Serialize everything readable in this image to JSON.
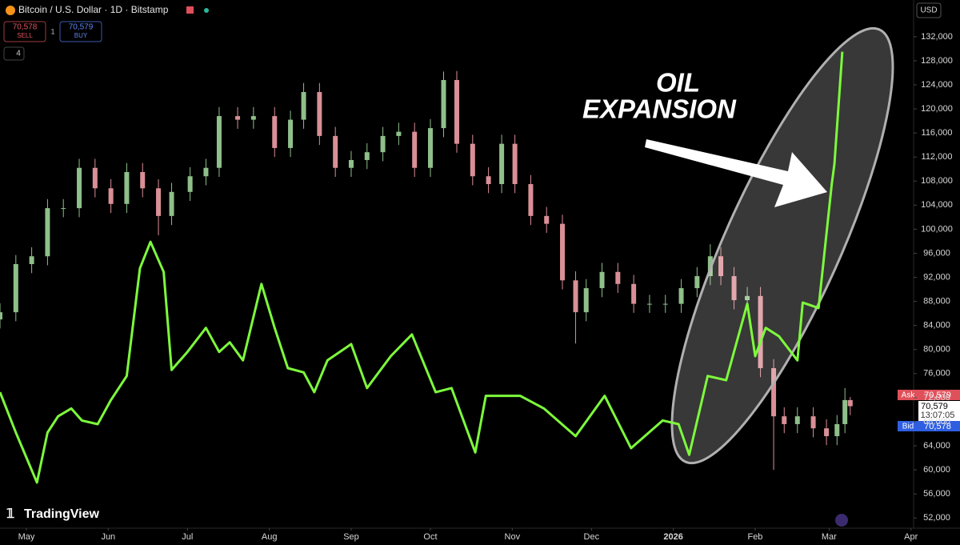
{
  "chart_data": {
    "type": "candlestick",
    "title": "Bitcoin / U.S. Dollar · 1D · Bitstamp",
    "currency": "USD",
    "order_panel": {
      "sell_price": "70,578",
      "sell_label": "SELL",
      "spread": "1",
      "buy_price": "70,579",
      "buy_label": "BUY"
    },
    "indicator_count": "4",
    "annotation": [
      "OIL",
      "EXPANSION"
    ],
    "watermark": "TradingView",
    "price_tags": {
      "ask_label": "Ask",
      "ask": "70,579",
      "last": "70,579",
      "countdown": "13:07:05",
      "bid_label": "Bid",
      "bid": "70,578"
    },
    "xlim": [
      -10,
      336
    ],
    "xticks": [
      {
        "value": 0,
        "label": "May"
      },
      {
        "value": 31,
        "label": "Jun"
      },
      {
        "value": 61,
        "label": "Jul"
      },
      {
        "value": 92,
        "label": "Aug"
      },
      {
        "value": 123,
        "label": "Sep"
      },
      {
        "value": 153,
        "label": "Oct"
      },
      {
        "value": 184,
        "label": "Nov"
      },
      {
        "value": 214,
        "label": "Dec"
      },
      {
        "value": 245,
        "label": "2026"
      },
      {
        "value": 276,
        "label": "Feb"
      },
      {
        "value": 304,
        "label": "Mar"
      },
      {
        "value": 335,
        "label": "Apr"
      }
    ],
    "ylim": [
      50300,
      138100
    ],
    "yticks": [
      {
        "value": 52000,
        "label": "52,000"
      },
      {
        "value": 56000,
        "label": "56,000"
      },
      {
        "value": 60000,
        "label": "60,000"
      },
      {
        "value": 64000,
        "label": "64,000"
      },
      {
        "value": 68000,
        "label": "68,000"
      },
      {
        "value": 72000,
        "label": "72,000"
      },
      {
        "value": 76000,
        "label": "76,000"
      },
      {
        "value": 80000,
        "label": "80,000"
      },
      {
        "value": 84000,
        "label": "84,000"
      },
      {
        "value": 88000,
        "label": "88,000"
      },
      {
        "value": 92000,
        "label": "92,000"
      },
      {
        "value": 96000,
        "label": "96,000"
      },
      {
        "value": 100000,
        "label": "100,000"
      },
      {
        "value": 104000,
        "label": "104,000"
      },
      {
        "value": 108000,
        "label": "108,000"
      },
      {
        "value": 112000,
        "label": "112,000"
      },
      {
        "value": 116000,
        "label": "116,000"
      },
      {
        "value": 120000,
        "label": "120,000"
      },
      {
        "value": 124000,
        "label": "124,000"
      },
      {
        "value": 128000,
        "label": "128,000"
      },
      {
        "value": 132000,
        "label": "132,000"
      }
    ],
    "candles": {
      "up_color": "#8fbf8a",
      "down_color": "#d98f96",
      "x": [
        -10,
        -4,
        2,
        8,
        14,
        20,
        26,
        32,
        38,
        44,
        50,
        55,
        62,
        68,
        73,
        80,
        86,
        94,
        100,
        105,
        111,
        117,
        123,
        129,
        135,
        141,
        147,
        153,
        158,
        163,
        169,
        175,
        180,
        185,
        191,
        197,
        203,
        208,
        212,
        218,
        224,
        230,
        236,
        242,
        248,
        254,
        259,
        263,
        268,
        273,
        278,
        283,
        287,
        292,
        298,
        303,
        307,
        310,
        312
      ],
      "open": [
        85000,
        86200,
        94200,
        95500,
        103500,
        103500,
        110200,
        106800,
        104200,
        109500,
        106800,
        102200,
        106200,
        108800,
        110200,
        118800,
        118200,
        118800,
        113500,
        118200,
        122800,
        115500,
        110200,
        111500,
        112800,
        115500,
        116200,
        110200,
        116800,
        124800,
        114200,
        108800,
        107500,
        114200,
        107500,
        102200,
        100900,
        91500,
        86200,
        90200,
        92900,
        90900,
        87600,
        87600,
        87600,
        90200,
        92200,
        95500,
        92200,
        88200,
        88900,
        76900,
        68900,
        67600,
        68900,
        66900,
        65600,
        67600,
        71600
      ],
      "high": [
        87700,
        95700,
        97000,
        105000,
        105000,
        111700,
        111700,
        108300,
        111000,
        111000,
        108300,
        107700,
        110300,
        111700,
        120300,
        120300,
        120300,
        120300,
        119700,
        124300,
        124300,
        117000,
        113000,
        114300,
        117000,
        117700,
        117700,
        118300,
        126200,
        126300,
        115700,
        110300,
        115700,
        115700,
        109000,
        103700,
        102400,
        93000,
        91700,
        94400,
        94400,
        92400,
        89100,
        89100,
        91700,
        93700,
        97500,
        97000,
        93700,
        90400,
        90400,
        78400,
        70400,
        70400,
        70400,
        68400,
        69100,
        73600,
        72100
      ],
      "low": [
        83500,
        84700,
        92700,
        94000,
        102000,
        102000,
        105300,
        102700,
        102700,
        105300,
        99000,
        100700,
        104700,
        107300,
        108700,
        116700,
        116700,
        112000,
        112000,
        116700,
        114000,
        108700,
        108700,
        110000,
        111300,
        114000,
        108700,
        108700,
        115300,
        112700,
        107300,
        106000,
        106000,
        106000,
        100700,
        99400,
        90000,
        81000,
        84700,
        88700,
        89400,
        86100,
        86100,
        86100,
        86100,
        88700,
        90700,
        90700,
        86700,
        86700,
        75400,
        60000,
        66100,
        66100,
        65400,
        64100,
        64100,
        66100,
        69100
      ],
      "close": [
        86200,
        94200,
        95500,
        103500,
        103500,
        110200,
        106800,
        104200,
        109500,
        106800,
        102200,
        106200,
        108800,
        110200,
        118800,
        118200,
        118800,
        113500,
        118200,
        122800,
        115500,
        110200,
        111500,
        112800,
        115500,
        116200,
        110200,
        116800,
        124800,
        114200,
        108800,
        107500,
        114200,
        107500,
        102200,
        100900,
        91500,
        86200,
        90200,
        92900,
        90900,
        87600,
        87600,
        87600,
        90200,
        92200,
        95500,
        92200,
        88200,
        88900,
        76900,
        68900,
        67600,
        68900,
        66900,
        65600,
        67600,
        71600,
        70579
      ]
    },
    "overlay": {
      "color": "#7dfa3c",
      "x": [
        -10,
        -4,
        4,
        8,
        12,
        17,
        21,
        27,
        32,
        38,
        43,
        47,
        52,
        55,
        61,
        68,
        73,
        77,
        82,
        89,
        94,
        99,
        105,
        109,
        114,
        123,
        129,
        138,
        146,
        155,
        161,
        170,
        174,
        187,
        196,
        208,
        219,
        229,
        241,
        247,
        251,
        258,
        265,
        273,
        276,
        280,
        285,
        292,
        294,
        300,
        305,
        306,
        309
      ],
      "values": [
        72900,
        66200,
        57900,
        66200,
        68900,
        70200,
        68200,
        67600,
        71600,
        75600,
        93500,
        97900,
        92900,
        76600,
        79600,
        83600,
        79600,
        81200,
        78200,
        90900,
        83600,
        76900,
        76200,
        72900,
        78200,
        80900,
        73600,
        78900,
        82500,
        72900,
        73600,
        62900,
        72300,
        72300,
        70200,
        65600,
        72300,
        63600,
        68200,
        67600,
        62500,
        75600,
        74900,
        87600,
        78900,
        83600,
        82200,
        78200,
        87800,
        86900,
        107500,
        110800,
        129500
      ]
    }
  }
}
